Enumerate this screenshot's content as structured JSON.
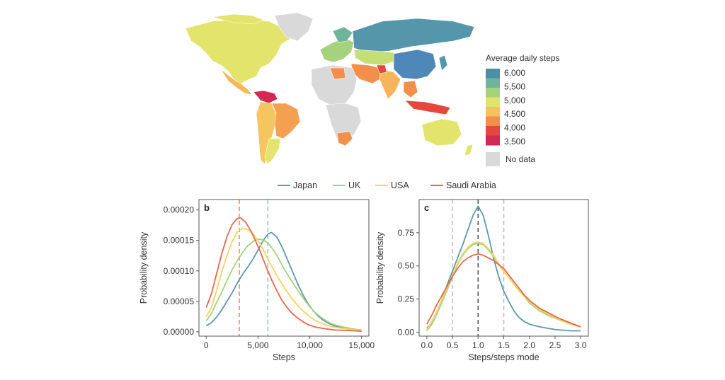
{
  "map": {
    "legend_title": "Average daily steps",
    "legend_ticks": [
      "6,000",
      "5,500",
      "5,000",
      "4,500",
      "4,000",
      "3,500"
    ],
    "colorscale": [
      "#4e8fa8",
      "#6cb59b",
      "#a6d27e",
      "#e0e46a",
      "#f6c25d",
      "#f28f4a",
      "#e4483c",
      "#d12a52"
    ],
    "no_data_label": "No data",
    "no_data_color": "#d9d9d9"
  },
  "legend": [
    {
      "name": "Japan",
      "color": "#5b97b0"
    },
    {
      "name": "UK",
      "color": "#a3d37b"
    },
    {
      "name": "USA",
      "color": "#f6d35f"
    },
    {
      "name": "Saudi Arabia",
      "color": "#e8664a"
    }
  ],
  "chart_data": [
    {
      "type": "line",
      "panel_label": "b",
      "xlabel": "Steps",
      "ylabel": "Probability density",
      "xlim": [
        -700,
        15700
      ],
      "ylim": [
        -7e-06,
        0.000217
      ],
      "xticks": [
        0,
        5000,
        10000,
        15000
      ],
      "xtick_labels": [
        "0",
        "5,000",
        "10,000",
        "15,000"
      ],
      "yticks": [
        0,
        5e-05,
        0.0001,
        0.00015,
        0.0002
      ],
      "ytick_labels": [
        "0.00000",
        "0.00005",
        "0.00010",
        "0.00015",
        "0.00020"
      ],
      "vlines": [
        {
          "x": 3200,
          "color": "#f28b6b"
        },
        {
          "x": 5950,
          "color": "#9fbfcc"
        }
      ],
      "series": [
        {
          "name": "Japan",
          "color": "#5b97b0",
          "points": [
            [
              0,
              1e-05
            ],
            [
              500,
              1.5e-05
            ],
            [
              1000,
              2.4e-05
            ],
            [
              1500,
              3.6e-05
            ],
            [
              2000,
              5e-05
            ],
            [
              2500,
              6.4e-05
            ],
            [
              3000,
              8e-05
            ],
            [
              3500,
              9.4e-05
            ],
            [
              4000,
              0.000106
            ],
            [
              4500,
              0.000119
            ],
            [
              5000,
              0.000134
            ],
            [
              5500,
              0.00015
            ],
            [
              6000,
              0.000161
            ],
            [
              6300,
              0.000163
            ],
            [
              6800,
              0.000156
            ],
            [
              7300,
              0.00014
            ],
            [
              7800,
              0.00012
            ],
            [
              8300,
              0.0001
            ],
            [
              8800,
              8e-05
            ],
            [
              9300,
              6.2e-05
            ],
            [
              9800,
              4.7e-05
            ],
            [
              10300,
              3.5e-05
            ],
            [
              10800,
              2.6e-05
            ],
            [
              11300,
              1.9e-05
            ],
            [
              11800,
              1.4e-05
            ],
            [
              12500,
              9e-06
            ],
            [
              13500,
              5e-06
            ],
            [
              14500,
              3e-06
            ],
            [
              15000,
              2e-06
            ]
          ]
        },
        {
          "name": "UK",
          "color": "#a3d37b",
          "points": [
            [
              0,
              1.8e-05
            ],
            [
              500,
              3e-05
            ],
            [
              1000,
              4.8e-05
            ],
            [
              1500,
              6.5e-05
            ],
            [
              2000,
              8.4e-05
            ],
            [
              2500,
              0.000102
            ],
            [
              3000,
              0.000117
            ],
            [
              3500,
              0.00013
            ],
            [
              4000,
              0.000141
            ],
            [
              4500,
              0.000148
            ],
            [
              5000,
              0.000152
            ],
            [
              5500,
              0.000151
            ],
            [
              6000,
              0.000145
            ],
            [
              6500,
              0.000134
            ],
            [
              7000,
              0.00012
            ],
            [
              7500,
              0.000104
            ],
            [
              8000,
              9e-05
            ],
            [
              8500,
              7.7e-05
            ],
            [
              9000,
              6.4e-05
            ],
            [
              9500,
              5.2e-05
            ],
            [
              10000,
              4.1e-05
            ],
            [
              10500,
              3.2e-05
            ],
            [
              11000,
              2.5e-05
            ],
            [
              11500,
              1.9e-05
            ],
            [
              12000,
              1.4e-05
            ],
            [
              12500,
              1.1e-05
            ],
            [
              13000,
              9e-06
            ],
            [
              13500,
              7e-06
            ],
            [
              14500,
              4e-06
            ],
            [
              15000,
              3e-06
            ]
          ]
        },
        {
          "name": "USA",
          "color": "#f6d35f",
          "points": [
            [
              0,
              2.5e-05
            ],
            [
              500,
              4e-05
            ],
            [
              1000,
              6.8e-05
            ],
            [
              1500,
              9.8e-05
            ],
            [
              2000,
              0.000125
            ],
            [
              2500,
              0.000148
            ],
            [
              3000,
              0.000164
            ],
            [
              3500,
              0.00017
            ],
            [
              4000,
              0.000168
            ],
            [
              4500,
              0.000161
            ],
            [
              5000,
              0.00015
            ],
            [
              5500,
              0.000135
            ],
            [
              6000,
              0.000118
            ],
            [
              6500,
              0.000102
            ],
            [
              7000,
              8.7e-05
            ],
            [
              7500,
              7.4e-05
            ],
            [
              8000,
              6.1e-05
            ],
            [
              8500,
              5e-05
            ],
            [
              9000,
              4e-05
            ],
            [
              9500,
              3.2e-05
            ],
            [
              10000,
              2.5e-05
            ],
            [
              10500,
              1.9e-05
            ],
            [
              11000,
              1.5e-05
            ],
            [
              11500,
              1.2e-05
            ],
            [
              12000,
              9e-06
            ],
            [
              13000,
              6e-06
            ],
            [
              14000,
              4e-06
            ],
            [
              15000,
              2e-06
            ]
          ]
        },
        {
          "name": "Saudi Arabia",
          "color": "#e8664a",
          "points": [
            [
              0,
              4e-05
            ],
            [
              500,
              6.2e-05
            ],
            [
              1000,
              9.5e-05
            ],
            [
              1500,
              0.000128
            ],
            [
              2000,
              0.000156
            ],
            [
              2500,
              0.000176
            ],
            [
              3000,
              0.000186
            ],
            [
              3300,
              0.000187
            ],
            [
              3800,
              0.00018
            ],
            [
              4300,
              0.000166
            ],
            [
              4800,
              0.000148
            ],
            [
              5300,
              0.000128
            ],
            [
              5800,
              0.000106
            ],
            [
              6300,
              8.6e-05
            ],
            [
              6800,
              6.8e-05
            ],
            [
              7300,
              5.2e-05
            ],
            [
              7800,
              4e-05
            ],
            [
              8300,
              3e-05
            ],
            [
              8800,
              2.3e-05
            ],
            [
              9300,
              1.7e-05
            ],
            [
              9800,
              1.2e-05
            ],
            [
              10500,
              8e-06
            ],
            [
              11500,
              5e-06
            ],
            [
              12500,
              3e-06
            ],
            [
              14000,
              2e-06
            ],
            [
              15000,
              1e-06
            ]
          ]
        }
      ]
    },
    {
      "type": "line",
      "panel_label": "c",
      "xlabel": "Steps/steps mode",
      "ylabel": "Probability density",
      "xlim": [
        -0.15,
        3.15
      ],
      "ylim": [
        -0.03,
        1.0
      ],
      "xticks": [
        0.0,
        0.5,
        1.0,
        1.5,
        2.0,
        2.5,
        3.0
      ],
      "xtick_labels": [
        "0.0",
        "0.5",
        "1.0",
        "1.5",
        "2.0",
        "2.5",
        "3.0"
      ],
      "yticks": [
        0.0,
        0.25,
        0.5,
        0.75
      ],
      "ytick_labels": [
        "0.00",
        "0.25",
        "0.50",
        "0.75"
      ],
      "vlines": [
        {
          "x": 0.5,
          "color": "#c0c0c0"
        },
        {
          "x": 1.0,
          "color": "#555555"
        },
        {
          "x": 1.5,
          "color": "#c0c0c0"
        }
      ],
      "series": [
        {
          "name": "Japan",
          "color": "#5b97b0",
          "points": [
            [
              0.0,
              0.03
            ],
            [
              0.1,
              0.07
            ],
            [
              0.2,
              0.15
            ],
            [
              0.3,
              0.25
            ],
            [
              0.4,
              0.36
            ],
            [
              0.5,
              0.46
            ],
            [
              0.6,
              0.56
            ],
            [
              0.7,
              0.66
            ],
            [
              0.8,
              0.77
            ],
            [
              0.9,
              0.88
            ],
            [
              1.0,
              0.95
            ],
            [
              1.1,
              0.88
            ],
            [
              1.2,
              0.73
            ],
            [
              1.3,
              0.56
            ],
            [
              1.4,
              0.42
            ],
            [
              1.5,
              0.31
            ],
            [
              1.6,
              0.23
            ],
            [
              1.7,
              0.16
            ],
            [
              1.8,
              0.11
            ],
            [
              1.9,
              0.08
            ],
            [
              2.0,
              0.06
            ],
            [
              2.2,
              0.04
            ],
            [
              2.5,
              0.02
            ],
            [
              2.8,
              0.01
            ],
            [
              3.0,
              0.01
            ]
          ]
        },
        {
          "name": "UK",
          "color": "#a3d37b",
          "points": [
            [
              0.0,
              0.01
            ],
            [
              0.1,
              0.06
            ],
            [
              0.2,
              0.14
            ],
            [
              0.3,
              0.23
            ],
            [
              0.4,
              0.32
            ],
            [
              0.5,
              0.42
            ],
            [
              0.6,
              0.51
            ],
            [
              0.7,
              0.58
            ],
            [
              0.8,
              0.63
            ],
            [
              0.9,
              0.66
            ],
            [
              1.0,
              0.67
            ],
            [
              1.1,
              0.66
            ],
            [
              1.2,
              0.62
            ],
            [
              1.3,
              0.57
            ],
            [
              1.4,
              0.51
            ],
            [
              1.5,
              0.46
            ],
            [
              1.6,
              0.41
            ],
            [
              1.7,
              0.36
            ],
            [
              1.8,
              0.31
            ],
            [
              1.9,
              0.27
            ],
            [
              2.0,
              0.22
            ],
            [
              2.2,
              0.16
            ],
            [
              2.4,
              0.12
            ],
            [
              2.6,
              0.09
            ],
            [
              2.8,
              0.06
            ],
            [
              3.0,
              0.04
            ]
          ]
        },
        {
          "name": "USA",
          "color": "#f6d35f",
          "points": [
            [
              0.0,
              0.02
            ],
            [
              0.1,
              0.08
            ],
            [
              0.2,
              0.16
            ],
            [
              0.3,
              0.25
            ],
            [
              0.4,
              0.34
            ],
            [
              0.5,
              0.43
            ],
            [
              0.6,
              0.52
            ],
            [
              0.7,
              0.59
            ],
            [
              0.8,
              0.64
            ],
            [
              0.9,
              0.67
            ],
            [
              1.0,
              0.68
            ],
            [
              1.1,
              0.67
            ],
            [
              1.2,
              0.63
            ],
            [
              1.3,
              0.58
            ],
            [
              1.4,
              0.52
            ],
            [
              1.5,
              0.46
            ],
            [
              1.6,
              0.41
            ],
            [
              1.7,
              0.36
            ],
            [
              1.8,
              0.31
            ],
            [
              1.9,
              0.27
            ],
            [
              2.0,
              0.23
            ],
            [
              2.2,
              0.17
            ],
            [
              2.4,
              0.13
            ],
            [
              2.6,
              0.09
            ],
            [
              2.8,
              0.06
            ],
            [
              3.0,
              0.04
            ]
          ]
        },
        {
          "name": "Saudi Arabia",
          "color": "#e8664a",
          "points": [
            [
              0.0,
              0.06
            ],
            [
              0.1,
              0.13
            ],
            [
              0.2,
              0.21
            ],
            [
              0.3,
              0.28
            ],
            [
              0.4,
              0.35
            ],
            [
              0.5,
              0.42
            ],
            [
              0.6,
              0.48
            ],
            [
              0.7,
              0.53
            ],
            [
              0.8,
              0.56
            ],
            [
              0.9,
              0.58
            ],
            [
              1.0,
              0.59
            ],
            [
              1.1,
              0.58
            ],
            [
              1.2,
              0.56
            ],
            [
              1.3,
              0.54
            ],
            [
              1.4,
              0.51
            ],
            [
              1.5,
              0.48
            ],
            [
              1.6,
              0.43
            ],
            [
              1.7,
              0.38
            ],
            [
              1.8,
              0.33
            ],
            [
              1.9,
              0.28
            ],
            [
              2.0,
              0.24
            ],
            [
              2.2,
              0.18
            ],
            [
              2.4,
              0.14
            ],
            [
              2.6,
              0.1
            ],
            [
              2.8,
              0.07
            ],
            [
              3.0,
              0.04
            ]
          ]
        }
      ]
    }
  ]
}
